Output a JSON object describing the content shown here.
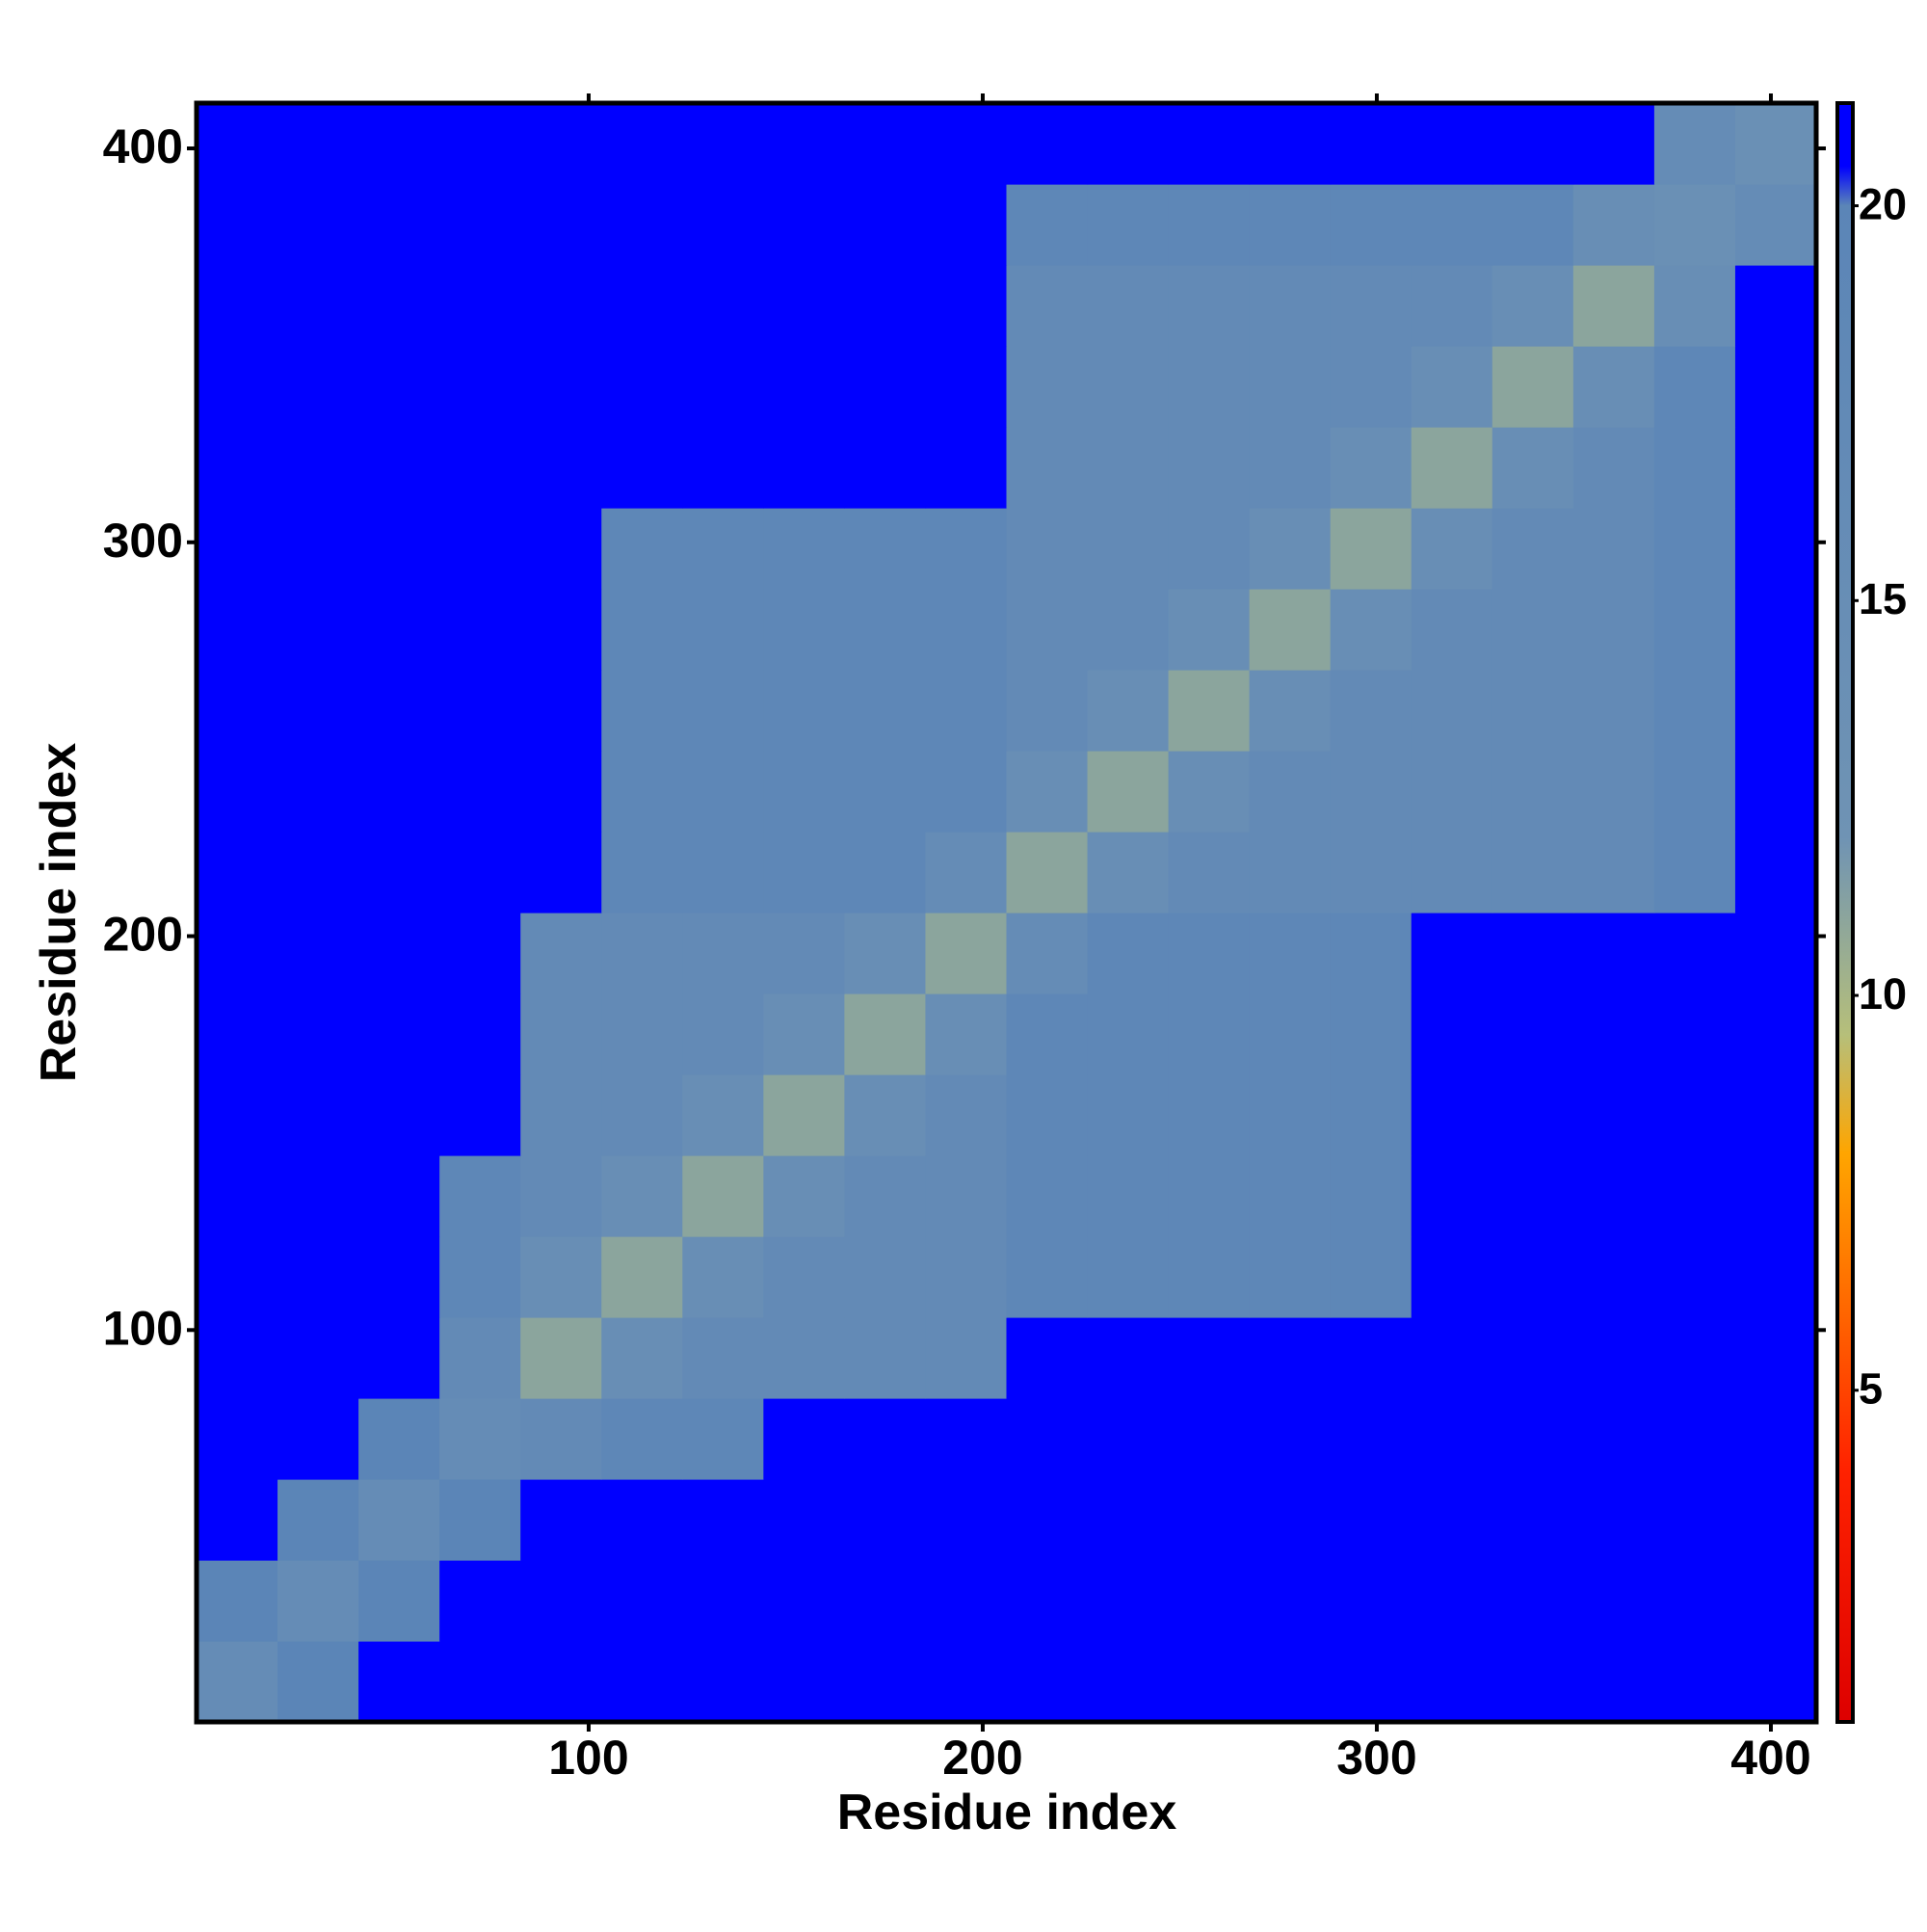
{
  "chart_data": {
    "type": "heatmap",
    "xlabel": "Residue index",
    "ylabel": "Residue index",
    "xlim": [
      0.5,
      411.5
    ],
    "ylim": [
      0.5,
      411.5
    ],
    "xticks": [
      100,
      200,
      300,
      400
    ],
    "yticks": [
      100,
      200,
      300,
      400
    ],
    "bins": [
      0.5,
      21.05,
      41.6,
      62.15,
      82.7,
      103.25,
      123.8,
      144.35,
      164.9,
      185.45,
      206,
      226.55,
      247.1,
      267.65,
      288.2,
      308.75,
      329.3,
      349.85,
      370.4,
      390.95,
      411.5
    ],
    "values": [
      [
        16,
        20,
        21,
        21,
        21,
        21,
        21,
        21,
        21,
        21,
        21,
        21,
        21,
        21,
        21,
        21,
        21,
        21,
        21,
        21
      ],
      [
        20,
        16,
        20,
        21,
        21,
        21,
        21,
        21,
        21,
        21,
        21,
        21,
        21,
        21,
        21,
        21,
        21,
        21,
        21,
        21
      ],
      [
        21,
        20,
        16,
        20,
        21,
        21,
        21,
        21,
        21,
        21,
        21,
        21,
        21,
        21,
        21,
        21,
        21,
        21,
        21,
        21
      ],
      [
        21,
        21,
        20,
        16,
        17,
        19,
        19,
        21,
        21,
        21,
        21,
        21,
        21,
        21,
        21,
        21,
        21,
        21,
        21,
        21
      ],
      [
        21,
        21,
        21,
        17,
        11,
        15,
        17,
        17,
        17,
        17,
        21,
        21,
        21,
        21,
        21,
        21,
        21,
        21,
        21,
        21
      ],
      [
        21,
        21,
        21,
        19,
        15,
        11,
        15,
        17,
        17,
        17,
        19,
        19,
        19,
        19,
        19,
        21,
        21,
        21,
        21,
        21
      ],
      [
        21,
        21,
        21,
        19,
        17,
        15,
        11,
        15,
        17,
        17,
        19,
        19,
        19,
        19,
        19,
        21,
        21,
        21,
        21,
        21
      ],
      [
        21,
        21,
        21,
        21,
        17,
        17,
        15,
        11,
        15,
        17,
        19,
        19,
        19,
        19,
        19,
        21,
        21,
        21,
        21,
        21
      ],
      [
        21,
        21,
        21,
        21,
        17,
        17,
        17,
        15,
        11,
        15,
        19,
        19,
        19,
        19,
        19,
        21,
        21,
        21,
        21,
        21
      ],
      [
        21,
        21,
        21,
        21,
        17,
        17,
        17,
        17,
        15,
        11,
        16,
        19,
        19,
        19,
        19,
        21,
        21,
        21,
        21,
        21
      ],
      [
        21,
        21,
        21,
        21,
        21,
        19,
        19,
        19,
        19,
        16,
        11,
        15,
        17,
        17,
        17,
        17,
        17,
        17,
        19,
        21
      ],
      [
        21,
        21,
        21,
        21,
        21,
        19,
        19,
        19,
        19,
        19,
        15,
        11,
        15,
        17,
        17,
        17,
        17,
        17,
        19,
        21
      ],
      [
        21,
        21,
        21,
        21,
        21,
        19,
        19,
        19,
        19,
        19,
        17,
        15,
        11,
        15,
        17,
        17,
        17,
        17,
        19,
        21
      ],
      [
        21,
        21,
        21,
        21,
        21,
        19,
        19,
        19,
        19,
        19,
        17,
        17,
        15,
        11,
        15,
        17,
        17,
        17,
        19,
        21
      ],
      [
        21,
        21,
        21,
        21,
        21,
        19,
        19,
        19,
        19,
        19,
        17,
        17,
        17,
        15,
        11,
        15,
        17,
        17,
        19,
        21
      ],
      [
        21,
        21,
        21,
        21,
        21,
        21,
        21,
        21,
        21,
        21,
        17,
        17,
        17,
        17,
        15,
        11,
        15,
        17,
        19,
        21
      ],
      [
        21,
        21,
        21,
        21,
        21,
        21,
        21,
        21,
        21,
        21,
        17,
        17,
        17,
        17,
        17,
        15,
        11,
        15,
        19,
        21
      ],
      [
        21,
        21,
        21,
        21,
        21,
        21,
        21,
        21,
        21,
        21,
        17,
        17,
        17,
        17,
        17,
        17,
        15,
        11,
        15,
        21
      ],
      [
        21,
        21,
        21,
        21,
        21,
        21,
        21,
        21,
        21,
        21,
        19,
        19,
        19,
        19,
        19,
        19,
        19,
        15,
        14,
        16
      ],
      [
        21,
        21,
        21,
        21,
        21,
        21,
        21,
        21,
        21,
        21,
        21,
        21,
        21,
        21,
        21,
        21,
        21,
        21,
        16,
        14
      ]
    ],
    "clim": [
      0.8,
      21.3
    ],
    "cticks": [
      5,
      10,
      15,
      20
    ],
    "colorscale": [
      [
        0.8,
        "#dd0000"
      ],
      [
        4,
        "#ff2200"
      ],
      [
        6,
        "#ff6600"
      ],
      [
        8,
        "#ffa500"
      ],
      [
        9.5,
        "#b6bf7a"
      ],
      [
        12,
        "#6f93b4"
      ],
      [
        20,
        "#5b85b7"
      ],
      [
        20.5,
        "#0000ff"
      ],
      [
        21.3,
        "#0000ff"
      ]
    ]
  }
}
